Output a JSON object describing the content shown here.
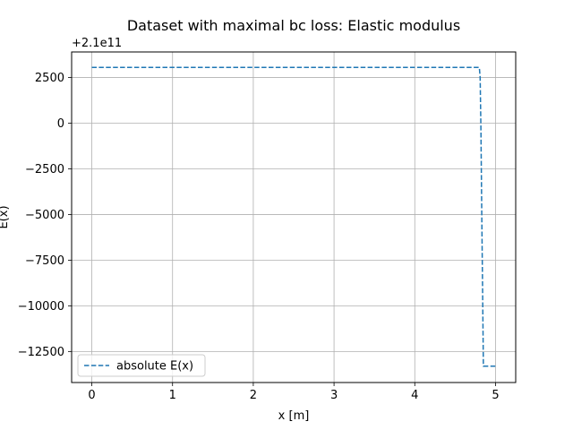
{
  "chart_data": {
    "type": "line",
    "title": "Dataset with maximal bc loss: Elastic modulus",
    "xlabel": "x [m]",
    "ylabel": "E(x)",
    "y_offset_label": "+2.1e11",
    "xlim": [
      -0.25,
      5.25
    ],
    "ylim": [
      -14200,
      3900
    ],
    "x_ticks": [
      0,
      1,
      2,
      3,
      4,
      5
    ],
    "x_tick_labels": [
      "0",
      "1",
      "2",
      "3",
      "4",
      "5"
    ],
    "y_ticks": [
      2500,
      0,
      -2500,
      -5000,
      -7500,
      -10000,
      -12500
    ],
    "y_tick_labels": [
      "2500",
      "0",
      "−2500",
      "−5000",
      "−7500",
      "−10000",
      "−12500"
    ],
    "grid": true,
    "legend_position": "lower-left",
    "series": [
      {
        "name": "absolute E(x)",
        "color": "#1f77b4",
        "linestyle": "dashed",
        "x": [
          0,
          4.8,
          4.81,
          4.82,
          4.83,
          4.84,
          4.85,
          4.9,
          5.0
        ],
        "y": [
          3050,
          3050,
          2500,
          -500,
          -5000,
          -9000,
          -13300,
          -13300,
          -13300
        ]
      }
    ]
  }
}
